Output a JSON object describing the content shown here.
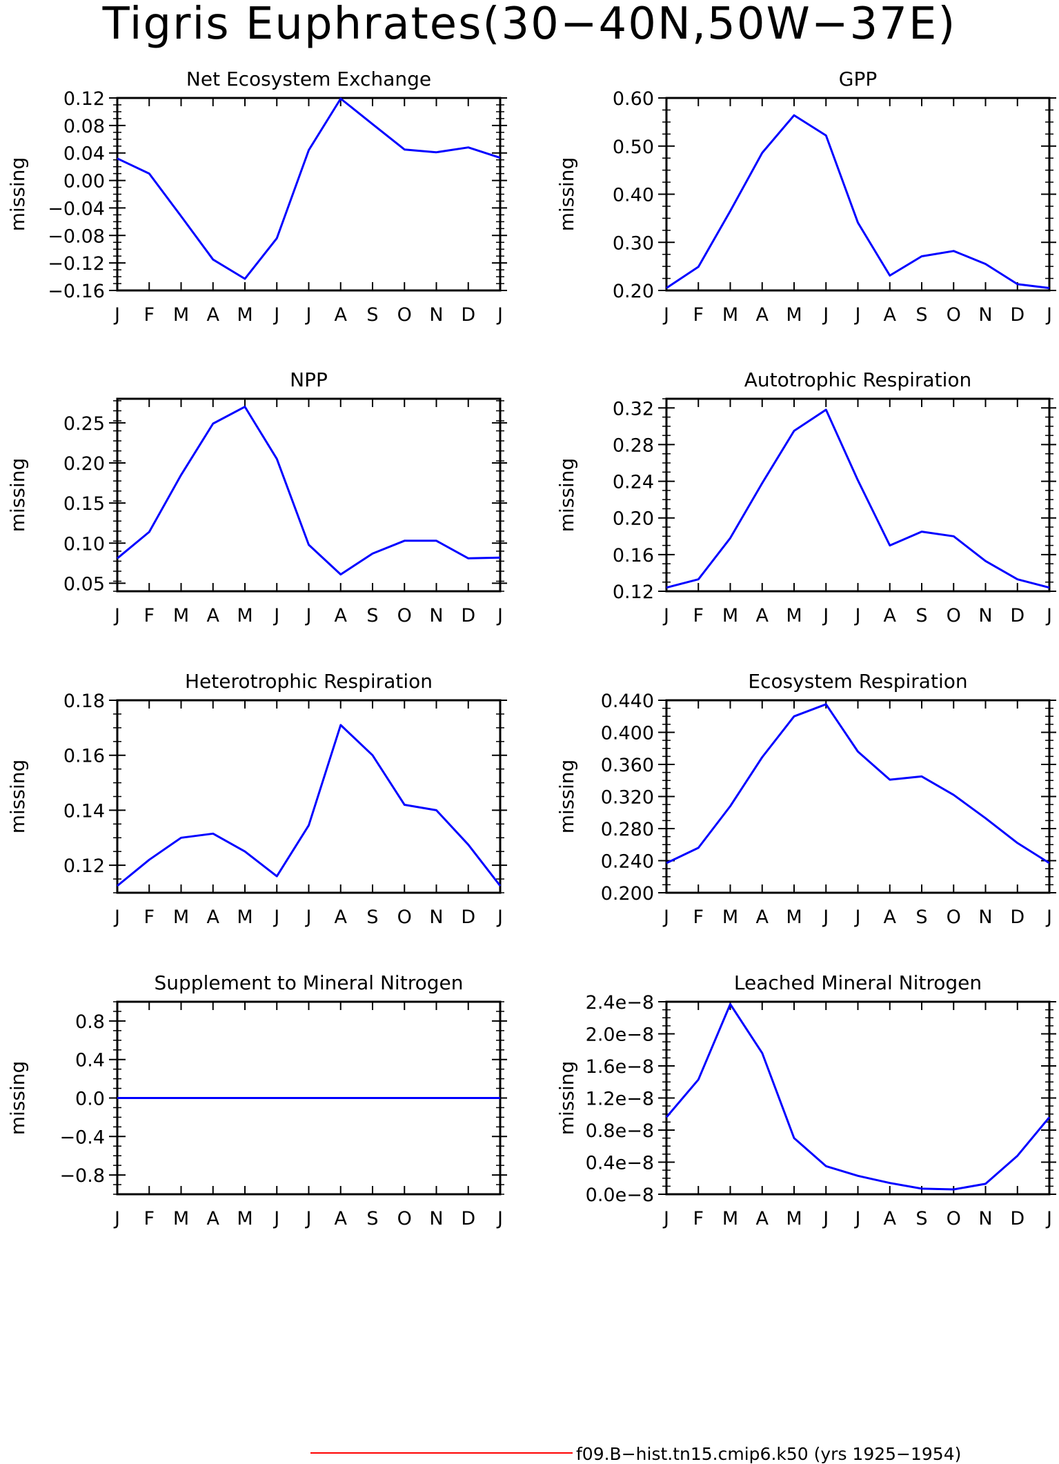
{
  "title": "Tigris Euphrates(30-40N,50W-37E)",
  "legend": {
    "label": "f09.B-hist.tn15.cmip6.k50 (yrs 1925-1954)",
    "color": "#ff0000"
  },
  "line_color": "#0000ff",
  "chart_data": [
    {
      "type": "line",
      "title": "Net Ecosystem Exchange",
      "ylabel": "missing",
      "categories": [
        "J",
        "F",
        "M",
        "A",
        "M",
        "J",
        "J",
        "A",
        "S",
        "O",
        "N",
        "D",
        "J"
      ],
      "ylim": [
        -0.16,
        0.12
      ],
      "yticks": [
        "0.12",
        "0.08",
        "0.04",
        "0.00",
        "-0.04",
        "-0.08",
        "-0.12",
        "-0.16"
      ],
      "series": [
        {
          "values": [
            0.032,
            0.01,
            -0.052,
            -0.115,
            -0.143,
            -0.084,
            0.044,
            0.119,
            0.082,
            0.045,
            0.041,
            0.048,
            0.033
          ]
        }
      ]
    },
    {
      "type": "line",
      "title": "GPP",
      "ylabel": "missing",
      "categories": [
        "J",
        "F",
        "M",
        "A",
        "M",
        "J",
        "J",
        "A",
        "S",
        "O",
        "N",
        "D",
        "J"
      ],
      "ylim": [
        0.2,
        0.6
      ],
      "yticks": [
        "0.60",
        "0.50",
        "0.40",
        "0.30",
        "0.20"
      ],
      "series": [
        {
          "values": [
            0.205,
            0.249,
            0.365,
            0.486,
            0.564,
            0.522,
            0.341,
            0.231,
            0.271,
            0.282,
            0.255,
            0.213,
            0.205
          ]
        }
      ]
    },
    {
      "type": "line",
      "title": "NPP",
      "ylabel": "missing",
      "categories": [
        "J",
        "F",
        "M",
        "A",
        "M",
        "J",
        "J",
        "A",
        "S",
        "O",
        "N",
        "D",
        "J"
      ],
      "ylim": [
        0.04,
        0.28
      ],
      "yticks": [
        "0.25",
        "0.20",
        "0.15",
        "0.10",
        "0.05"
      ],
      "series": [
        {
          "values": [
            0.081,
            0.114,
            0.185,
            0.249,
            0.27,
            0.205,
            0.098,
            0.061,
            0.087,
            0.103,
            0.103,
            0.081,
            0.082
          ]
        }
      ]
    },
    {
      "type": "line",
      "title": "Autotrophic Respiration",
      "ylabel": "missing",
      "categories": [
        "J",
        "F",
        "M",
        "A",
        "M",
        "J",
        "J",
        "A",
        "S",
        "O",
        "N",
        "D",
        "J"
      ],
      "ylim": [
        0.12,
        0.33
      ],
      "yticks": [
        "0.32",
        "0.28",
        "0.24",
        "0.20",
        "0.16",
        "0.12"
      ],
      "series": [
        {
          "values": [
            0.124,
            0.133,
            0.178,
            0.238,
            0.295,
            0.318,
            0.241,
            0.17,
            0.185,
            0.18,
            0.153,
            0.133,
            0.124
          ]
        }
      ]
    },
    {
      "type": "line",
      "title": "Heterotrophic Respiration",
      "ylabel": "missing",
      "categories": [
        "J",
        "F",
        "M",
        "A",
        "M",
        "J",
        "J",
        "A",
        "S",
        "O",
        "N",
        "D",
        "J"
      ],
      "ylim": [
        0.11,
        0.18
      ],
      "yticks": [
        "0.18",
        "0.16",
        "0.14",
        "0.12"
      ],
      "series": [
        {
          "values": [
            0.1125,
            0.122,
            0.13,
            0.1315,
            0.125,
            0.116,
            0.1345,
            0.171,
            0.16,
            0.142,
            0.14,
            0.1275,
            0.1125
          ]
        }
      ]
    },
    {
      "type": "line",
      "title": "Ecosystem Respiration",
      "ylabel": "missing",
      "categories": [
        "J",
        "F",
        "M",
        "A",
        "M",
        "J",
        "J",
        "A",
        "S",
        "O",
        "N",
        "D",
        "J"
      ],
      "ylim": [
        0.2,
        0.44
      ],
      "yticks": [
        "0.440",
        "0.400",
        "0.360",
        "0.320",
        "0.280",
        "0.240",
        "0.200"
      ],
      "series": [
        {
          "values": [
            0.237,
            0.256,
            0.308,
            0.369,
            0.42,
            0.435,
            0.376,
            0.341,
            0.345,
            0.322,
            0.293,
            0.262,
            0.237
          ]
        }
      ]
    },
    {
      "type": "line",
      "title": "Supplement to Mineral Nitrogen",
      "ylabel": "missing",
      "categories": [
        "J",
        "F",
        "M",
        "A",
        "M",
        "J",
        "J",
        "A",
        "S",
        "O",
        "N",
        "D",
        "J"
      ],
      "ylim": [
        -1.0,
        1.0
      ],
      "yticks": [
        "0.8",
        "0.4",
        "0.0",
        "-0.4",
        "-0.8"
      ],
      "series": [
        {
          "values": [
            0,
            0,
            0,
            0,
            0,
            0,
            0,
            0,
            0,
            0,
            0,
            0,
            0
          ]
        }
      ]
    },
    {
      "type": "line",
      "title": "Leached Mineral Nitrogen",
      "ylabel": "missing",
      "categories": [
        "J",
        "F",
        "M",
        "A",
        "M",
        "J",
        "J",
        "A",
        "S",
        "O",
        "N",
        "D",
        "J"
      ],
      "ylim": [
        0.0,
        2.4
      ],
      "yticks": [
        "2.4e-8",
        "2.0e-8",
        "1.6e-8",
        "1.2e-8",
        "0.8e-8",
        "0.4e-8",
        "0.0e-8"
      ],
      "series": [
        {
          "values": [
            0.96,
            1.43,
            2.37,
            1.76,
            0.7,
            0.35,
            0.23,
            0.14,
            0.07,
            0.06,
            0.13,
            0.48,
            0.96
          ]
        }
      ]
    }
  ]
}
